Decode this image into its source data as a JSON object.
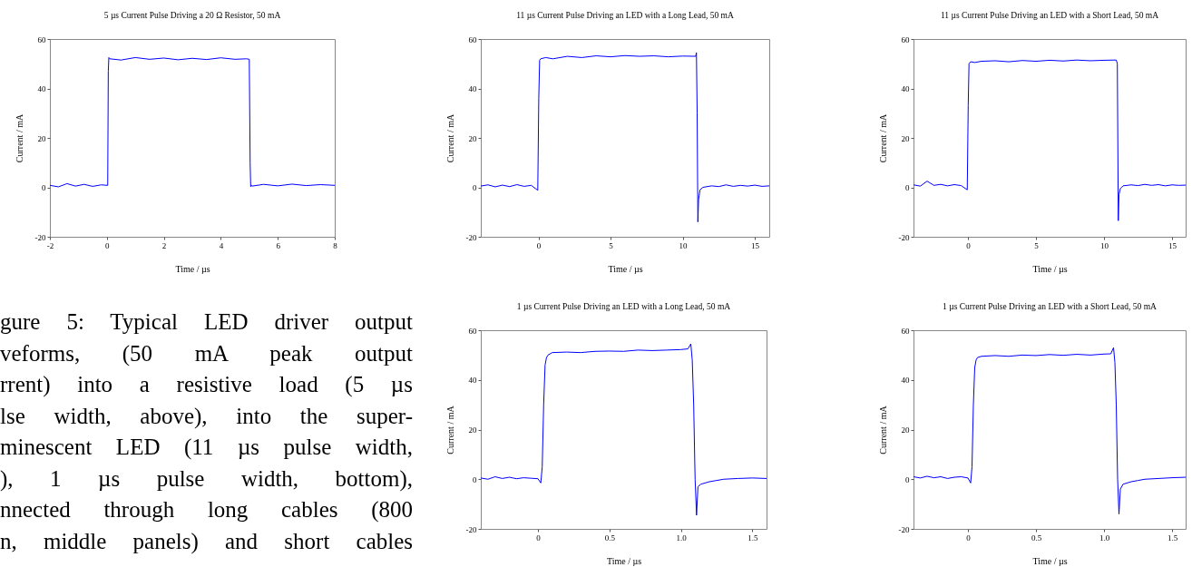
{
  "chart_data": [
    {
      "type": "line",
      "title": "5 µs Current Pulse Driving a 20 Ω Resistor, 50 mA",
      "xlabel": "Time / µs",
      "ylabel": "Current / mA",
      "xlim": [
        -2,
        8
      ],
      "xticks": [
        -2,
        0,
        2,
        4,
        6,
        8
      ],
      "ylim": [
        -20,
        60
      ],
      "yticks": [
        -20,
        0,
        20,
        40,
        60
      ],
      "grid": false,
      "annotations": [
        "gure 5: Typical LED driver output",
        "veforms, (50 mA peak output",
        "rrent) into a resistive load (5 µs",
        "lse width, above), into the super-",
        "minescent LED (11 µs pulse width,",
        "), 1 µs pulse width, bottom),",
        "nnected through long cables (800",
        "n, middle panels) and short cables"
      ],
      "x": [
        -2,
        -1.7,
        -1.4,
        -1.1,
        -0.8,
        -0.5,
        -0.2,
        0.03,
        0.05,
        0.07,
        0.1,
        0.5,
        1,
        1.5,
        2,
        2.5,
        3,
        3.5,
        4,
        4.5,
        4.9,
        5.0,
        5.03,
        5.05,
        5.07,
        5.1,
        5.5,
        6,
        6.5,
        7,
        7.5,
        8
      ],
      "series": [
        {
          "color": "#0000ff",
          "values": [
            0.8,
            0.2,
            1.5,
            0.5,
            1.2,
            0.4,
            1.0,
            0.8,
            47,
            52.5,
            52,
            51.5,
            52.5,
            51.8,
            52.3,
            51.6,
            52.2,
            51.7,
            52.4,
            51.8,
            52,
            51.8,
            10,
            0.3,
            0.8,
            0.5,
            1.2,
            0.6,
            1.3,
            0.7,
            1.1,
            0.8
          ]
        }
      ]
    },
    {
      "type": "line",
      "title": "11 µs Current Pulse Driving an LED with a Long Lead, 50 mA",
      "xlabel": "Time / µs",
      "ylabel": "Current / mA",
      "xlim": [
        -4,
        16
      ],
      "xticks": [
        0,
        5,
        10,
        15
      ],
      "ylim": [
        -20,
        60
      ],
      "yticks": [
        -20,
        0,
        20,
        40,
        60
      ],
      "grid": false,
      "x": [
        -4,
        -3.5,
        -3,
        -2.5,
        -2,
        -1.5,
        -1,
        -0.5,
        -0.05,
        0.02,
        0.08,
        0.15,
        0.5,
        1,
        2,
        3,
        4,
        5,
        6,
        7,
        8,
        9,
        10,
        10.9,
        10.95,
        11.0,
        11.05,
        11.1,
        11.2,
        11.4,
        12,
        12.5,
        13,
        13.5,
        14,
        14.5,
        15,
        15.5,
        16
      ],
      "series": [
        {
          "color": "#0000ff",
          "values": [
            0.5,
            1,
            0.2,
            0.9,
            0.3,
            1.1,
            0.4,
            0.8,
            -1.2,
            36,
            51.5,
            52,
            52.5,
            52,
            53,
            52.5,
            53.2,
            52.8,
            53.3,
            53,
            53.2,
            52.8,
            53.1,
            53,
            54.5,
            30,
            -14,
            -5,
            -1,
            0,
            0.6,
            0.3,
            1,
            0.4,
            0.8,
            0.5,
            0.9,
            0.4,
            0.6
          ]
        }
      ]
    },
    {
      "type": "line",
      "title": "11 µs Current Pulse Driving an LED with a Short Lead, 50 mA",
      "xlabel": "Time / µs",
      "ylabel": "Current / mA",
      "xlim": [
        -4,
        16
      ],
      "xticks": [
        0,
        5,
        10,
        15
      ],
      "ylim": [
        -20,
        60
      ],
      "yticks": [
        -20,
        0,
        20,
        40,
        60
      ],
      "grid": false,
      "x": [
        -4,
        -3.5,
        -3,
        -2.5,
        -2,
        -1.5,
        -1,
        -0.5,
        -0.05,
        0.02,
        0.08,
        0.2,
        0.5,
        1,
        2,
        3,
        4,
        5,
        6,
        7,
        8,
        9,
        10,
        10.9,
        10.98,
        11.05,
        11.1,
        11.2,
        11.4,
        12,
        12.5,
        13,
        13.5,
        14,
        14.5,
        15,
        15.5,
        16
      ],
      "series": [
        {
          "color": "#0000ff",
          "values": [
            1,
            0.5,
            2.5,
            0.8,
            1.2,
            0.6,
            1.1,
            0.7,
            -1,
            33,
            50,
            50.8,
            50.5,
            51,
            51.2,
            50.8,
            51.3,
            51,
            51.4,
            51.1,
            51.5,
            51.2,
            51.4,
            51.5,
            50,
            -13.5,
            -3,
            -0.5,
            0.6,
            1,
            0.7,
            1.2,
            0.8,
            1.1,
            0.6,
            1,
            0.8,
            0.9
          ]
        }
      ]
    },
    {
      "type": "line",
      "title": "1 µs Current Pulse Driving an LED with a Long Lead, 50 mA",
      "xlabel": "Time / µs",
      "ylabel": "Current / mA",
      "xlim": [
        -0.4,
        1.6
      ],
      "xticks": [
        0,
        0.5,
        {
          "value": 1,
          "label": "1.0"
        },
        1.5
      ],
      "ylim": [
        -20,
        60
      ],
      "yticks": [
        -20,
        0,
        20,
        40,
        60
      ],
      "grid": false,
      "x": [
        -0.4,
        -0.35,
        -0.3,
        -0.25,
        -0.2,
        -0.15,
        -0.1,
        -0.05,
        0,
        0.02,
        0.03,
        0.04,
        0.05,
        0.06,
        0.07,
        0.1,
        0.2,
        0.3,
        0.4,
        0.5,
        0.6,
        0.7,
        0.8,
        0.9,
        1.0,
        1.05,
        1.07,
        1.08,
        1.09,
        1.1,
        1.11,
        1.12,
        1.14,
        1.2,
        1.25,
        1.3,
        1.4,
        1.5,
        1.6
      ],
      "series": [
        {
          "color": "#0000ff",
          "values": [
            0.5,
            0,
            1,
            0.3,
            0.8,
            0.2,
            0.6,
            0.4,
            0.2,
            -1.5,
            5,
            30,
            46,
            49,
            50,
            51,
            51.2,
            51,
            51.5,
            51.6,
            51.5,
            52,
            51.8,
            52,
            52.2,
            52.5,
            54.5,
            48,
            30,
            0,
            -14.5,
            -3,
            -2,
            -1,
            -0.5,
            0,
            0.3,
            0.5,
            0.3
          ]
        }
      ]
    },
    {
      "type": "line",
      "title": "1 µs Current Pulse Driving an LED with a Short Lead, 50 mA",
      "xlabel": "Time / µs",
      "ylabel": "Current / mA",
      "xlim": [
        -0.4,
        1.6
      ],
      "xticks": [
        0,
        0.5,
        {
          "value": 1,
          "label": "1.0"
        },
        1.5
      ],
      "ylim": [
        -20,
        60
      ],
      "yticks": [
        -20,
        0,
        20,
        40,
        60
      ],
      "grid": false,
      "x": [
        -0.4,
        -0.35,
        -0.3,
        -0.25,
        -0.2,
        -0.15,
        -0.1,
        -0.05,
        0,
        0.02,
        0.03,
        0.04,
        0.05,
        0.06,
        0.07,
        0.1,
        0.2,
        0.3,
        0.4,
        0.5,
        0.6,
        0.7,
        0.8,
        0.9,
        1.0,
        1.05,
        1.07,
        1.08,
        1.09,
        1.1,
        1.11,
        1.12,
        1.14,
        1.2,
        1.25,
        1.3,
        1.4,
        1.5,
        1.6
      ],
      "series": [
        {
          "color": "#0000ff",
          "values": [
            1,
            0.5,
            1.2,
            0.6,
            1,
            0.3,
            0.8,
            1,
            0.5,
            -1.5,
            5,
            30,
            45,
            48,
            49,
            49.5,
            49.8,
            49.5,
            50,
            49.8,
            50.2,
            49.9,
            50.3,
            50,
            50.4,
            50.5,
            53,
            47,
            30,
            0,
            -14,
            -4,
            -2,
            -1,
            -0.5,
            0,
            0.3,
            0.6,
            0.8
          ]
        }
      ]
    }
  ]
}
